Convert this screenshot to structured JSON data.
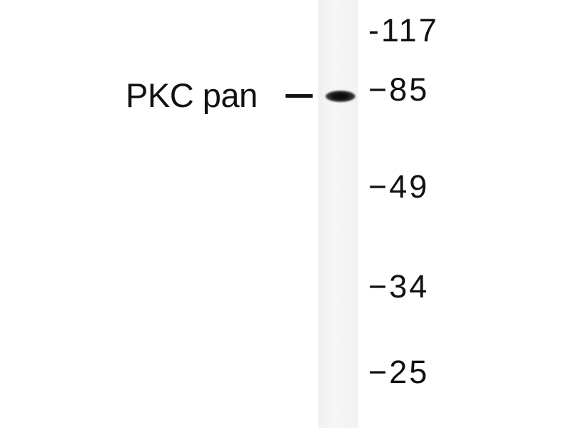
{
  "band_label": "PKC pan",
  "markers": [
    {
      "label": "-117"
    },
    {
      "label": "−85"
    },
    {
      "label": "−49"
    },
    {
      "label": "−34"
    },
    {
      "label": "−25"
    }
  ]
}
